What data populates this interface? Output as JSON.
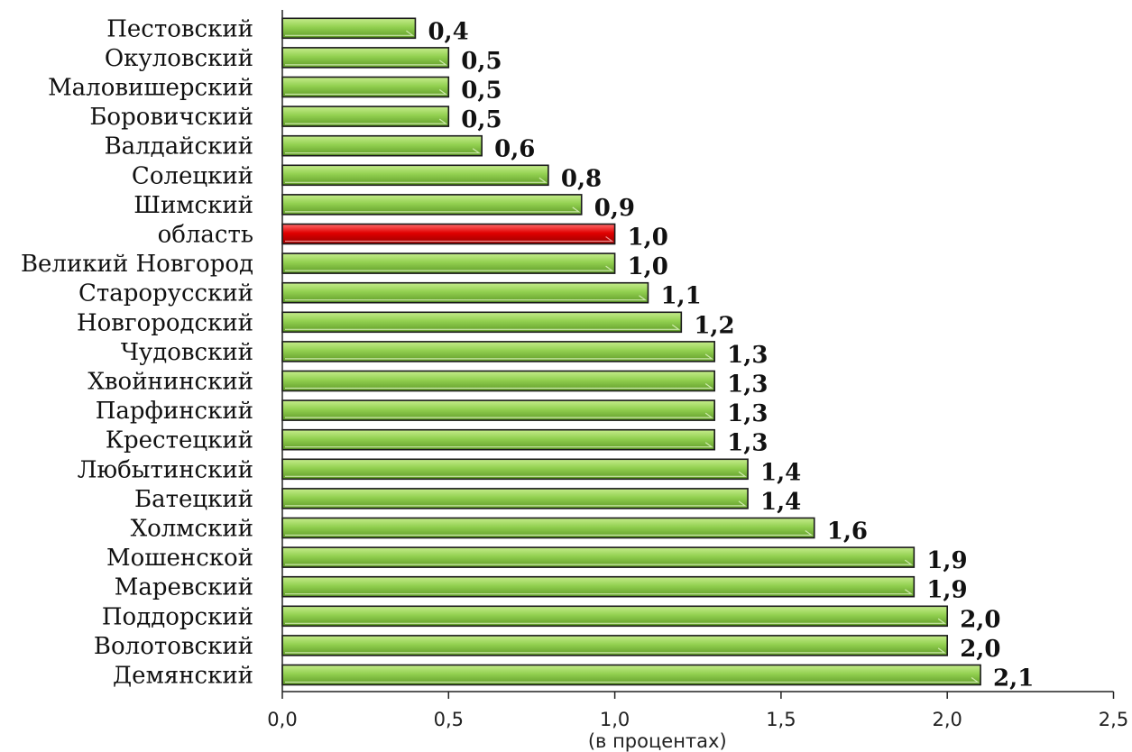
{
  "chart_data": {
    "type": "bar",
    "orientation": "horizontal",
    "categories": [
      "Пестовский",
      "Окуловский",
      "Маловишерский",
      "Боровичский",
      "Валдайский",
      "Солецкий",
      "Шимский",
      "область",
      "Великий Новгород",
      "Старорусский",
      "Новгородский",
      "Чудовский",
      "Хвойнинский",
      "Парфинский",
      "Крестецкий",
      "Любытинский",
      "Батецкий",
      "Холмский",
      "Мошенской",
      "Маревский",
      "Поддорский",
      "Волотовский",
      "Демянский"
    ],
    "values": [
      0.4,
      0.5,
      0.5,
      0.5,
      0.6,
      0.8,
      0.9,
      1.0,
      1.0,
      1.1,
      1.2,
      1.3,
      1.3,
      1.3,
      1.3,
      1.4,
      1.4,
      1.6,
      1.9,
      1.9,
      2.0,
      2.0,
      2.1
    ],
    "value_labels": [
      "0,4",
      "0,5",
      "0,5",
      "0,5",
      "0,6",
      "0,8",
      "0,9",
      "1,0",
      "1,0",
      "1,1",
      "1,2",
      "1,3",
      "1,3",
      "1,3",
      "1,3",
      "1,4",
      "1,4",
      "1,6",
      "1,9",
      "1,9",
      "2,0",
      "2,0",
      "2,1"
    ],
    "highlight_category": "область",
    "xlim": [
      0,
      2.5
    ],
    "x_ticks": [
      0,
      0.5,
      1.0,
      1.5,
      2.0,
      2.5
    ],
    "x_tick_labels": [
      "0,0",
      "0,5",
      "1,0",
      "1,5",
      "2,0",
      "2,5"
    ],
    "xlabel": "(в процентах)",
    "grid": false,
    "colors": {
      "bar": "#92d050",
      "bar_dark": "#5f9a28",
      "highlight": "#e00000",
      "highlight_dark": "#9a0000",
      "outline": "#1a1a1a"
    }
  }
}
